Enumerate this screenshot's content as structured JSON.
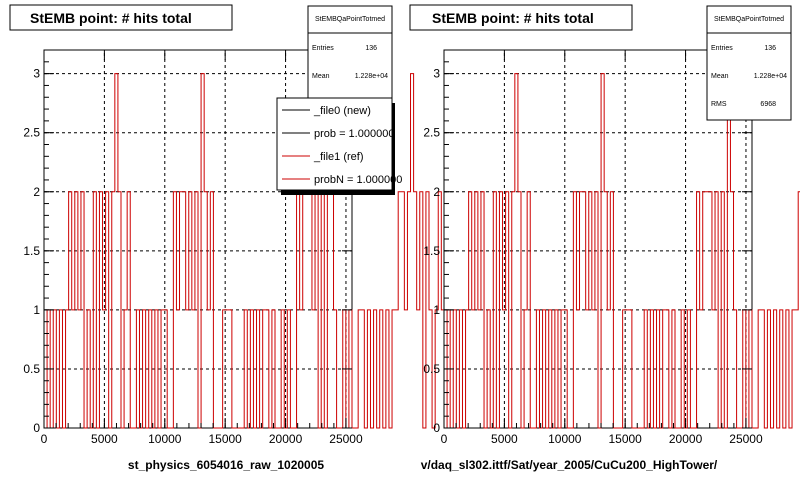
{
  "colors": {
    "file0": "#000000",
    "file1": "#cc0000",
    "grid": "#000000",
    "frame": "#000000"
  },
  "left": {
    "title": "StEMB point: # hits total",
    "xlabel": "st_physics_6054016_raw_1020005",
    "stats": {
      "name": "StEMBQaPointTotmed",
      "entries_label": "Entries",
      "entries_value": "136",
      "mean_label": "Mean",
      "mean_value": "1.228e+04"
    },
    "legend": [
      {
        "label": "_file0 (new)",
        "color": "#000000"
      },
      {
        "label": "prob = 1.000000",
        "color": "#000000"
      },
      {
        "label": "_file1 (ref)",
        "color": "#cc0000"
      },
      {
        "label": "probN = 1.000000",
        "color": "#cc0000"
      }
    ]
  },
  "right": {
    "title": "StEMB point: # hits total",
    "xlabel": "v/daq_sl302.ittf/Sat/year_2005/CuCu200_HighTower/",
    "stats": {
      "name": "StEMBQaPointTotmed",
      "entries_label": "Entries",
      "entries_value": "136",
      "mean_label": "Mean",
      "mean_value": "1.228e+04",
      "rms_label": "RMS",
      "rms_value": "6968"
    }
  },
  "chart_data": [
    {
      "type": "histogram",
      "title": "StEMB point: # hits total",
      "xlabel": "st_physics_6054016_raw_1020005",
      "ylabel": "",
      "xlim": [
        0,
        25500
      ],
      "ylim": [
        0,
        3.2
      ],
      "x_ticks": [
        "0",
        "5000",
        "10000",
        "15000",
        "20000",
        "25000"
      ],
      "y_ticks": [
        "0",
        "0.5",
        "1",
        "1.5",
        "2",
        "2.5",
        "3"
      ],
      "grid": true,
      "bin_width": 255,
      "series": [
        {
          "name": "_file1 (ref)",
          "values": [
            0,
            1,
            0,
            1,
            0,
            1,
            0,
            1,
            2,
            1,
            2,
            1,
            2,
            0,
            1,
            0,
            2,
            0,
            2,
            1,
            2,
            0,
            2,
            3,
            2,
            0,
            1,
            2,
            0,
            0,
            1,
            0,
            1,
            0,
            1,
            0,
            1,
            0,
            1,
            1,
            0,
            0,
            2,
            1,
            2,
            2,
            1,
            2,
            1,
            2,
            0,
            3,
            2,
            1,
            2,
            0,
            0,
            0,
            1,
            1,
            1,
            0,
            0,
            0,
            0,
            1,
            0,
            1,
            0,
            1,
            0,
            1,
            1,
            0,
            1,
            0,
            0,
            1,
            0,
            1,
            0,
            0,
            2,
            1,
            2,
            2,
            2,
            1,
            2,
            0,
            2,
            0,
            3,
            2,
            1,
            0,
            0,
            1,
            0,
            1,
            0,
            0,
            1,
            1,
            0,
            1,
            0,
            1,
            0,
            1,
            0,
            1,
            0,
            1,
            1,
            2,
            2,
            1,
            2,
            3,
            2,
            1,
            2,
            0,
            2,
            1,
            0,
            1,
            2,
            1,
            0,
            0,
            2,
            1,
            1,
            2
          ]
        }
      ]
    },
    {
      "type": "histogram",
      "title": "StEMB point: # hits total",
      "xlabel": "v/daq_sl302.ittf/Sat/year_2005/CuCu200_HighTower/",
      "ylabel": "",
      "xlim": [
        0,
        25500
      ],
      "ylim": [
        0,
        3.2
      ],
      "x_ticks": [
        "0",
        "5000",
        "10000",
        "15000",
        "20000",
        "25000"
      ],
      "y_ticks": [
        "0",
        "0.5",
        "1",
        "1.5",
        "2",
        "2.5",
        "3"
      ],
      "grid": true,
      "bin_width": 255,
      "series": [
        {
          "name": "",
          "values": [
            0,
            1,
            0,
            1,
            0,
            1,
            0,
            1,
            2,
            1,
            2,
            1,
            2,
            0,
            1,
            0,
            2,
            0,
            2,
            1,
            2,
            0,
            2,
            3,
            2,
            0,
            1,
            2,
            0,
            0,
            1,
            0,
            1,
            0,
            1,
            0,
            1,
            0,
            1,
            1,
            0,
            0,
            2,
            1,
            2,
            2,
            1,
            2,
            1,
            2,
            0,
            3,
            2,
            1,
            2,
            0,
            0,
            0,
            1,
            1,
            1,
            0,
            0,
            0,
            0,
            1,
            0,
            1,
            0,
            1,
            0,
            1,
            1,
            0,
            1,
            0,
            0,
            1,
            0,
            1,
            0,
            0,
            2,
            1,
            2,
            2,
            2,
            1,
            2,
            0,
            2,
            0,
            3,
            2,
            1,
            0,
            0,
            1,
            0,
            1,
            0,
            0,
            1,
            1,
            0,
            1,
            0,
            1,
            0,
            1,
            0,
            1,
            0,
            1,
            1,
            2,
            2,
            1,
            2,
            3,
            2,
            1,
            2,
            0,
            2,
            1,
            0,
            1,
            2,
            1,
            0,
            0,
            2,
            1,
            1,
            2
          ]
        }
      ]
    }
  ]
}
